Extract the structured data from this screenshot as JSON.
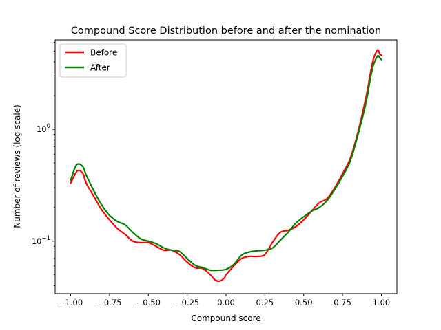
{
  "chart_data": {
    "type": "line",
    "title": "Compound Score Distribution before and after the nomination",
    "xlabel": "Compound score",
    "ylabel": "Number of reviews (log scale)",
    "xlim": [
      -1.1,
      1.1
    ],
    "ylim": [
      0.034,
      6.3
    ],
    "yscale": "log",
    "grid": false,
    "legend_position": "top-left",
    "x_ticks": [
      -1.0,
      -0.75,
      -0.5,
      -0.25,
      0.0,
      0.25,
      0.5,
      0.75,
      1.0
    ],
    "x_tick_labels": [
      "−1.00",
      "−0.75",
      "−0.50",
      "−0.25",
      "0.00",
      "0.25",
      "0.50",
      "0.75",
      "1.00"
    ],
    "y_major_ticks": [
      0.1,
      1
    ],
    "y_major_tick_labels": [
      "10",
      "10"
    ],
    "y_major_tick_exponents": [
      "−1",
      "0"
    ],
    "y_minor_ticks": [
      0.04,
      0.05,
      0.06,
      0.07,
      0.08,
      0.09,
      0.2,
      0.3,
      0.4,
      0.5,
      0.6,
      0.7,
      0.8,
      0.9,
      2,
      3,
      4,
      5,
      6
    ],
    "series": [
      {
        "name": "Before",
        "color": "#ff0000",
        "x": [
          -1.0,
          -0.97,
          -0.95,
          -0.92,
          -0.9,
          -0.85,
          -0.8,
          -0.75,
          -0.7,
          -0.65,
          -0.6,
          -0.55,
          -0.5,
          -0.45,
          -0.4,
          -0.35,
          -0.3,
          -0.25,
          -0.2,
          -0.15,
          -0.1,
          -0.07,
          -0.04,
          -0.01,
          0.0,
          0.05,
          0.1,
          0.15,
          0.2,
          0.25,
          0.3,
          0.35,
          0.4,
          0.45,
          0.5,
          0.55,
          0.6,
          0.65,
          0.7,
          0.75,
          0.8,
          0.85,
          0.9,
          0.93,
          0.95,
          0.97,
          0.98,
          0.99,
          1.0
        ],
        "y": [
          0.33,
          0.4,
          0.43,
          0.4,
          0.33,
          0.25,
          0.19,
          0.155,
          0.13,
          0.115,
          0.1,
          0.097,
          0.097,
          0.09,
          0.083,
          0.083,
          0.076,
          0.065,
          0.058,
          0.057,
          0.05,
          0.045,
          0.044,
          0.047,
          0.05,
          0.06,
          0.07,
          0.073,
          0.073,
          0.076,
          0.098,
          0.12,
          0.125,
          0.135,
          0.155,
          0.185,
          0.22,
          0.24,
          0.3,
          0.4,
          0.55,
          0.95,
          1.9,
          3.2,
          4.3,
          5.0,
          5.1,
          4.7,
          4.6
        ]
      },
      {
        "name": "After",
        "color": "#008000",
        "x": [
          -1.0,
          -0.97,
          -0.95,
          -0.92,
          -0.9,
          -0.85,
          -0.8,
          -0.75,
          -0.7,
          -0.65,
          -0.6,
          -0.55,
          -0.5,
          -0.45,
          -0.4,
          -0.35,
          -0.3,
          -0.25,
          -0.2,
          -0.15,
          -0.1,
          -0.05,
          0.0,
          0.05,
          0.1,
          0.15,
          0.2,
          0.25,
          0.3,
          0.35,
          0.4,
          0.45,
          0.5,
          0.55,
          0.6,
          0.65,
          0.7,
          0.75,
          0.8,
          0.85,
          0.9,
          0.93,
          0.95,
          0.97,
          0.98,
          0.99,
          1.0
        ],
        "y": [
          0.35,
          0.46,
          0.49,
          0.46,
          0.39,
          0.28,
          0.21,
          0.17,
          0.15,
          0.14,
          0.12,
          0.105,
          0.1,
          0.095,
          0.087,
          0.083,
          0.081,
          0.07,
          0.061,
          0.058,
          0.055,
          0.055,
          0.056,
          0.062,
          0.075,
          0.08,
          0.082,
          0.083,
          0.087,
          0.102,
          0.12,
          0.145,
          0.165,
          0.185,
          0.2,
          0.23,
          0.29,
          0.38,
          0.52,
          0.9,
          1.7,
          2.9,
          3.8,
          4.4,
          4.55,
          4.35,
          4.2
        ]
      }
    ]
  }
}
